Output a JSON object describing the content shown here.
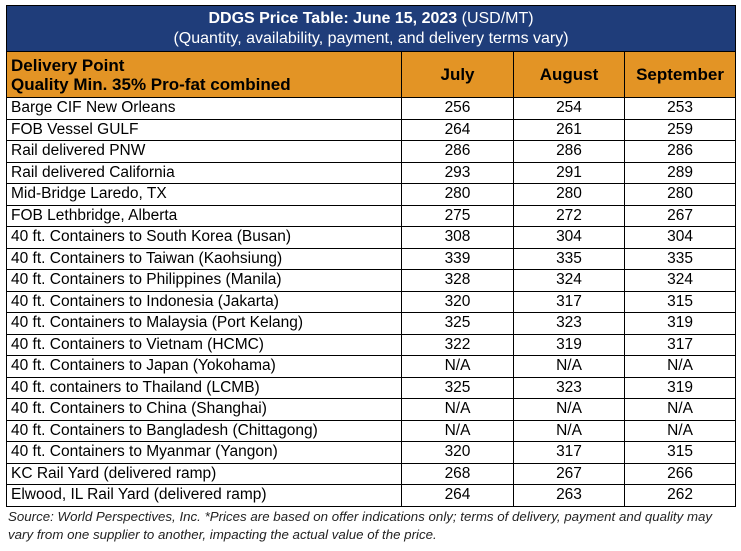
{
  "title": {
    "main": "DDGS Price Table: June 15, 2023",
    "unit": "(USD/MT)",
    "subtitle": "(Quantity, availability, payment, and delivery terms vary)"
  },
  "header": {
    "delivery_point": "Delivery Point",
    "quality": "Quality Min. 35% Pro-fat combined",
    "months": [
      "July",
      "August",
      "September"
    ]
  },
  "colors": {
    "title_bg": "#1f3d7a",
    "header_bg": "#e39425"
  },
  "rows": [
    {
      "location": "Barge CIF New Orleans",
      "july": "256",
      "august": "254",
      "september": "253"
    },
    {
      "location": "FOB Vessel GULF",
      "july": "264",
      "august": "261",
      "september": "259"
    },
    {
      "location": "Rail delivered PNW",
      "july": "286",
      "august": "286",
      "september": "286"
    },
    {
      "location": "Rail delivered California",
      "july": "293",
      "august": "291",
      "september": "289"
    },
    {
      "location": "Mid-Bridge Laredo, TX",
      "july": "280",
      "august": "280",
      "september": "280"
    },
    {
      "location": "FOB Lethbridge, Alberta",
      "july": "275",
      "august": "272",
      "september": "267"
    },
    {
      "location": "40 ft. Containers to South Korea (Busan)",
      "july": "308",
      "august": "304",
      "september": "304"
    },
    {
      "location": "40 ft. Containers to Taiwan (Kaohsiung)",
      "july": "339",
      "august": "335",
      "september": "335"
    },
    {
      "location": "40 ft. Containers to Philippines (Manila)",
      "july": "328",
      "august": "324",
      "september": "324"
    },
    {
      "location": "40 ft. Containers to Indonesia (Jakarta)",
      "july": "320",
      "august": "317",
      "september": "315"
    },
    {
      "location": "40 ft. Containers to Malaysia (Port Kelang)",
      "july": "325",
      "august": "323",
      "september": "319"
    },
    {
      "location": "40 ft. Containers to Vietnam (HCMC)",
      "july": "322",
      "august": "319",
      "september": "317"
    },
    {
      "location": "40 ft. Containers to Japan (Yokohama)",
      "july": "N/A",
      "august": "N/A",
      "september": "N/A"
    },
    {
      "location": "40 ft. containers to Thailand (LCMB)",
      "july": "325",
      "august": "323",
      "september": "319"
    },
    {
      "location": "40 ft. Containers to China (Shanghai)",
      "july": "N/A",
      "august": "N/A",
      "september": "N/A"
    },
    {
      "location": "40 ft. Containers to Bangladesh (Chittagong)",
      "july": "N/A",
      "august": "N/A",
      "september": "N/A"
    },
    {
      "location": "40 ft. Containers to Myanmar (Yangon)",
      "july": "320",
      "august": "317",
      "september": "315"
    },
    {
      "location": "KC Rail Yard (delivered ramp)",
      "july": "268",
      "august": "267",
      "september": "266"
    },
    {
      "location": "Elwood, IL Rail Yard (delivered ramp)",
      "july": "264",
      "august": "263",
      "september": "262"
    }
  ],
  "footnote": "Source: World Perspectives, Inc. *Prices are based on offer indications only; terms of delivery, payment and quality may vary from one supplier to another, impacting the actual value of the price."
}
